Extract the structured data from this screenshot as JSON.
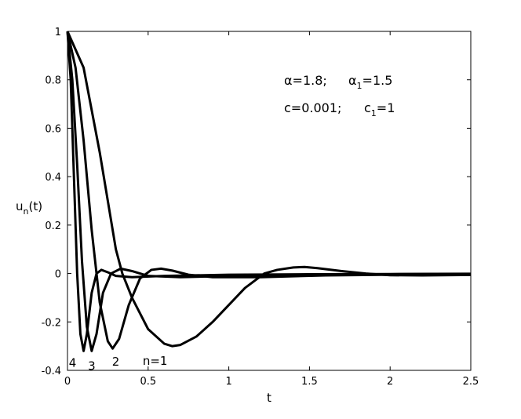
{
  "chart_data": {
    "type": "line",
    "xlabel": "t",
    "ylabel": {
      "text": "u",
      "sub": "n",
      "tail": "(t)"
    },
    "annotations": [
      {
        "text": "α=1.8;"
      },
      {
        "text": "α",
        "sub": "1",
        "tail": "=1.5"
      },
      {
        "text": "c=0.001;"
      },
      {
        "text": "c",
        "sub": "1",
        "tail": "=1"
      }
    ],
    "xlim": [
      0,
      2.5
    ],
    "xticks": [
      0,
      0.5,
      1,
      1.5,
      2,
      2.5
    ],
    "ylim": [
      -0.4,
      1
    ],
    "yticks": [
      -0.4,
      -0.2,
      0,
      0.2,
      0.4,
      0.6,
      0.8,
      1
    ],
    "grid": false,
    "series": [
      {
        "name": "n=1",
        "color": "#000000",
        "x": [
          0,
          0.1,
          0.2,
          0.3,
          0.34,
          0.4,
          0.5,
          0.6,
          0.65,
          0.7,
          0.8,
          0.9,
          1,
          1.1,
          1.22,
          1.3,
          1.4,
          1.47,
          1.55,
          1.7,
          1.85,
          2,
          2.2,
          2.5
        ],
        "values": [
          1,
          0.85,
          0.5,
          0.1,
          0.0,
          -0.1,
          -0.23,
          -0.29,
          -0.3,
          -0.295,
          -0.26,
          -0.2,
          -0.13,
          -0.06,
          0.0,
          0.015,
          0.025,
          0.027,
          0.022,
          0.01,
          0.0,
          -0.007,
          -0.008,
          -0.006
        ]
      },
      {
        "name": "2",
        "color": "#000000",
        "x": [
          0,
          0.05,
          0.1,
          0.15,
          0.2,
          0.25,
          0.28,
          0.32,
          0.38,
          0.45,
          0.52,
          0.58,
          0.65,
          0.75,
          0.9,
          1.2,
          1.6,
          2,
          2.5
        ],
        "values": [
          1,
          0.85,
          0.55,
          0.18,
          -0.12,
          -0.28,
          -0.31,
          -0.27,
          -0.13,
          -0.02,
          0.015,
          0.02,
          0.012,
          -0.005,
          -0.015,
          -0.015,
          -0.008,
          -0.005,
          -0.003
        ]
      },
      {
        "name": "3",
        "color": "#000000",
        "x": [
          0,
          0.03,
          0.06,
          0.09,
          0.12,
          0.15,
          0.18,
          0.22,
          0.27,
          0.33,
          0.4,
          0.5,
          0.7,
          1,
          1.5,
          2,
          2.5
        ],
        "values": [
          1,
          0.8,
          0.45,
          0.05,
          -0.22,
          -0.32,
          -0.25,
          -0.08,
          0.0,
          0.02,
          0.01,
          -0.01,
          -0.015,
          -0.01,
          -0.005,
          -0.003,
          -0.002
        ]
      },
      {
        "name": "4",
        "color": "#000000",
        "x": [
          0,
          0.02,
          0.04,
          0.06,
          0.08,
          0.1,
          0.12,
          0.15,
          0.18,
          0.21,
          0.25,
          0.3,
          0.4,
          0.6,
          1,
          1.5,
          2,
          2.5
        ],
        "values": [
          1,
          0.8,
          0.4,
          0.0,
          -0.25,
          -0.32,
          -0.25,
          -0.08,
          0.0,
          0.015,
          0.005,
          -0.01,
          -0.015,
          -0.01,
          -0.005,
          -0.003,
          -0.002,
          -0.001
        ]
      }
    ]
  }
}
